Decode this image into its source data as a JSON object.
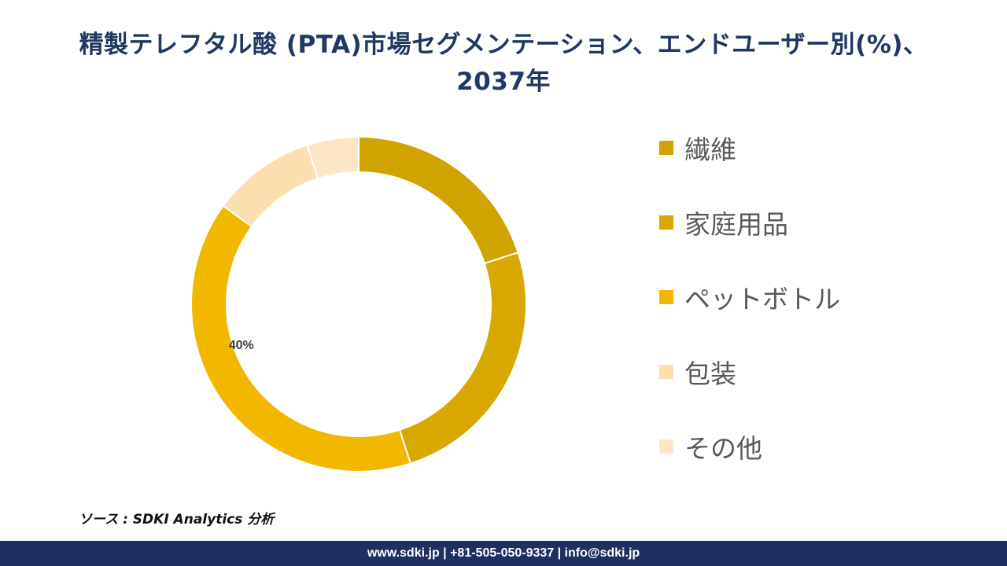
{
  "title": {
    "line1": "精製テレフタル酸 (PTA)市場セグメンテーション、エンドユーザー別(%)、",
    "line2": "2037年"
  },
  "chart_data": {
    "type": "pie",
    "style": "donut",
    "categories": [
      "繊維",
      "家庭用品",
      "ペットボトル",
      "包装",
      "その他"
    ],
    "values": [
      20,
      25,
      40,
      10,
      5
    ],
    "data_labels": [
      "",
      "",
      "40%",
      "",
      ""
    ],
    "colors": [
      "#cfa300",
      "#d9a800",
      "#f2b800",
      "#fbdfae",
      "#fce6c6"
    ],
    "legend_position": "right",
    "start_angle_deg": 0,
    "direction": "clockwise"
  },
  "source": "ソース : SDKI Analytics 分析",
  "footer": "www.sdki.jp | +81-505-050-9337 | info@sdki.jp"
}
